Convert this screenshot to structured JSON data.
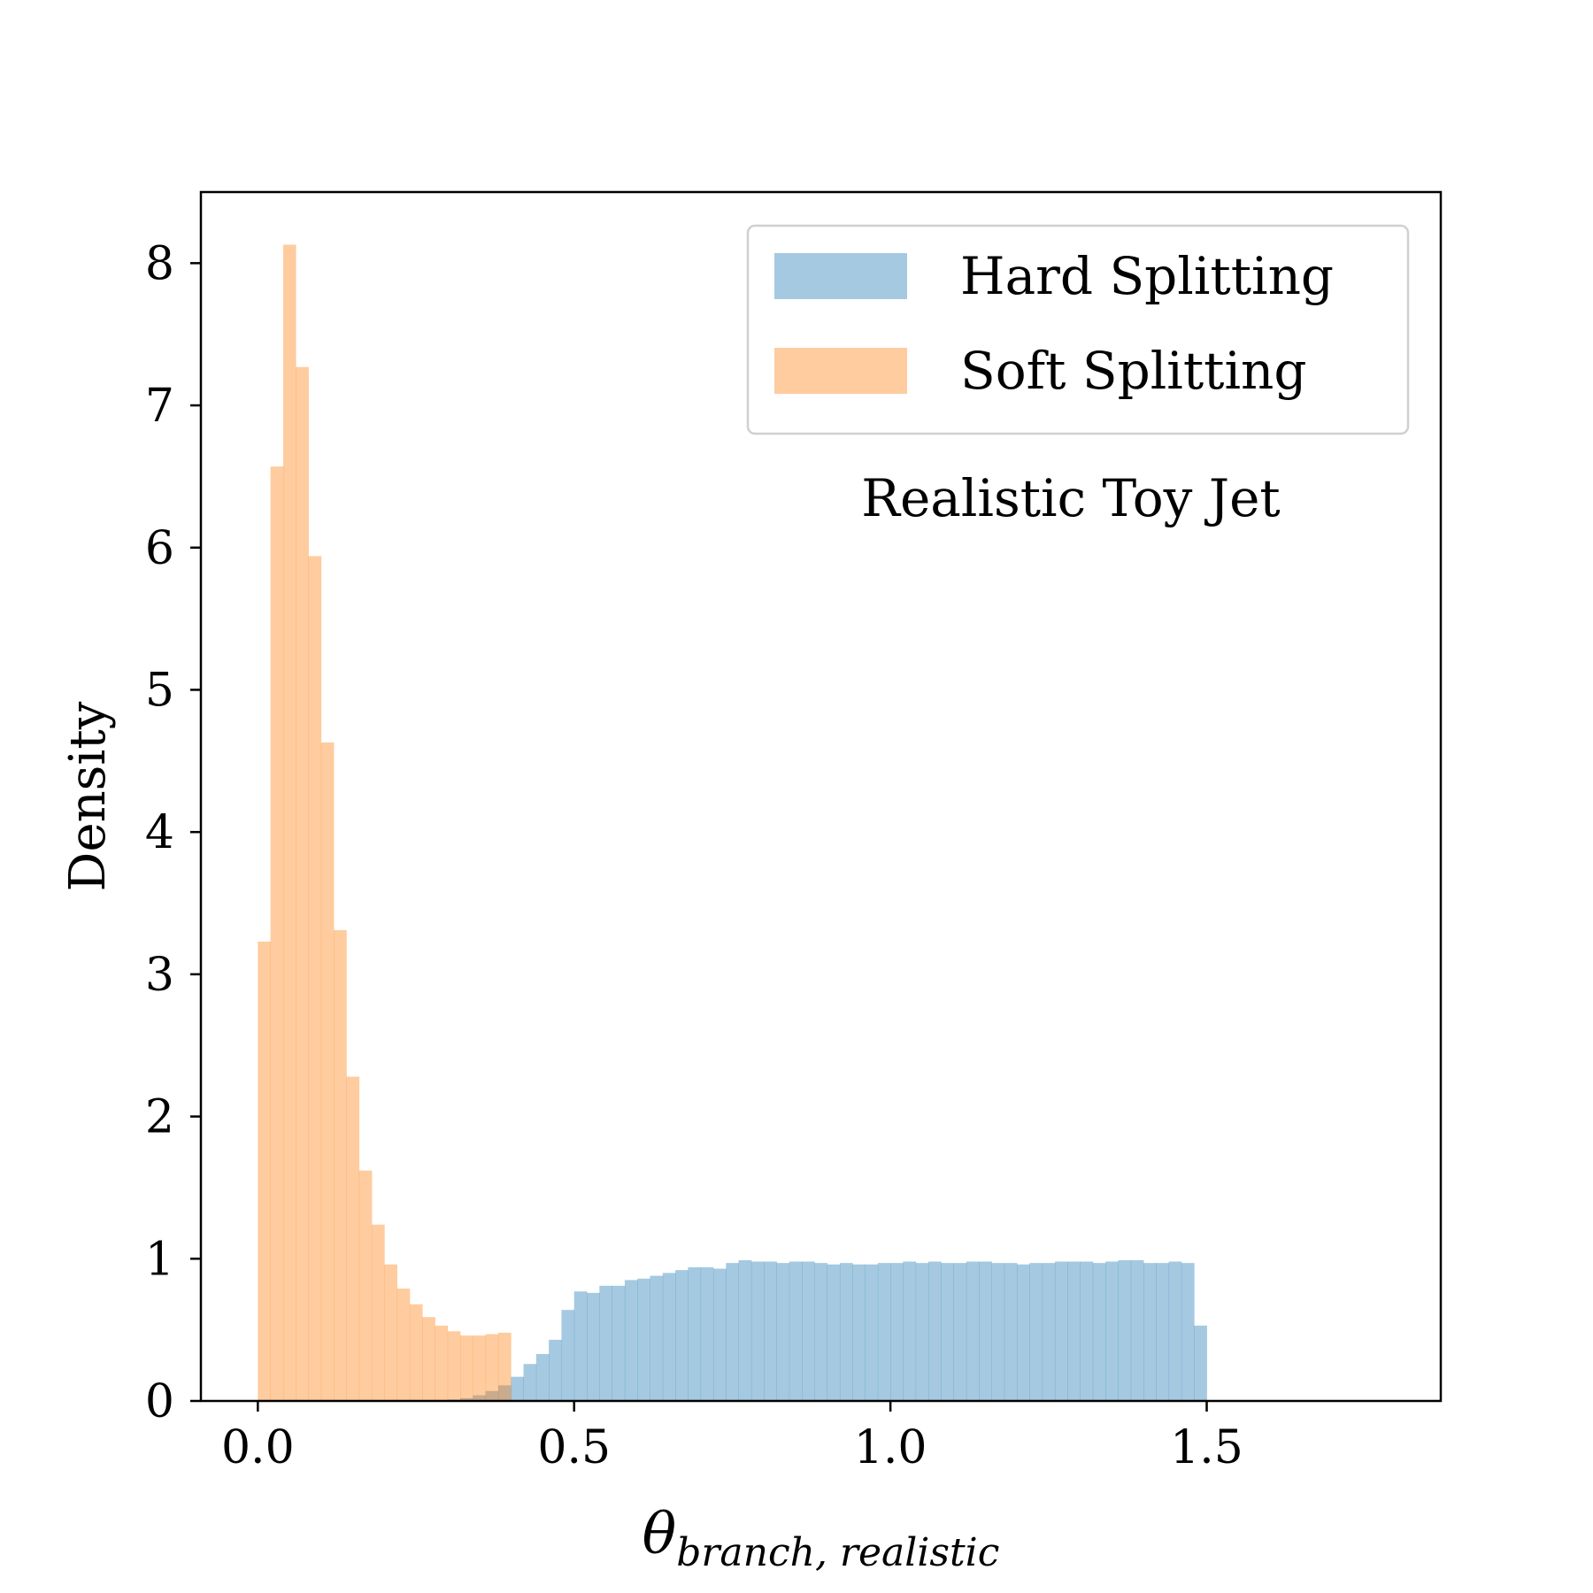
{
  "chart_data": {
    "type": "histogram",
    "title": "",
    "annotation": "Realistic Toy Jet",
    "xlabel": "θ",
    "xlabel_subscript": "branch, realistic",
    "ylabel": "Density",
    "xlim": [
      -0.09,
      1.87
    ],
    "ylim": [
      0,
      8.5
    ],
    "xticks": [
      "0.0",
      "0.5",
      "1.0",
      "1.5"
    ],
    "xtick_values": [
      0.0,
      0.5,
      1.0,
      1.5
    ],
    "yticks": [
      "0",
      "1",
      "2",
      "3",
      "4",
      "5",
      "6",
      "7",
      "8"
    ],
    "ytick_values": [
      0,
      1,
      2,
      3,
      4,
      5,
      6,
      7,
      8
    ],
    "grid": false,
    "legend_placement": "top-right",
    "series": [
      {
        "name": "Hard Splitting",
        "color": "#1f77b4",
        "alpha": 0.4,
        "bin_start": 0.28,
        "bin_width": 0.02,
        "values": [
          0.005,
          0.01,
          0.02,
          0.04,
          0.07,
          0.11,
          0.17,
          0.26,
          0.33,
          0.43,
          0.64,
          0.77,
          0.76,
          0.81,
          0.81,
          0.85,
          0.86,
          0.88,
          0.9,
          0.92,
          0.94,
          0.94,
          0.93,
          0.97,
          0.99,
          0.98,
          0.98,
          0.97,
          0.98,
          0.98,
          0.97,
          0.96,
          0.97,
          0.96,
          0.96,
          0.97,
          0.97,
          0.98,
          0.97,
          0.98,
          0.97,
          0.97,
          0.98,
          0.98,
          0.97,
          0.97,
          0.96,
          0.97,
          0.97,
          0.98,
          0.98,
          0.98,
          0.97,
          0.98,
          0.99,
          0.99,
          0.97,
          0.97,
          0.98,
          0.97,
          0.53
        ]
      },
      {
        "name": "Soft Splitting",
        "color": "#ff7f0e",
        "alpha": 0.4,
        "bin_start": 0.0,
        "bin_width": 0.02,
        "values": [
          3.23,
          6.57,
          8.13,
          7.27,
          5.94,
          4.63,
          3.31,
          2.28,
          1.62,
          1.24,
          0.96,
          0.79,
          0.68,
          0.59,
          0.53,
          0.49,
          0.46,
          0.46,
          0.47,
          0.48
        ]
      }
    ]
  }
}
